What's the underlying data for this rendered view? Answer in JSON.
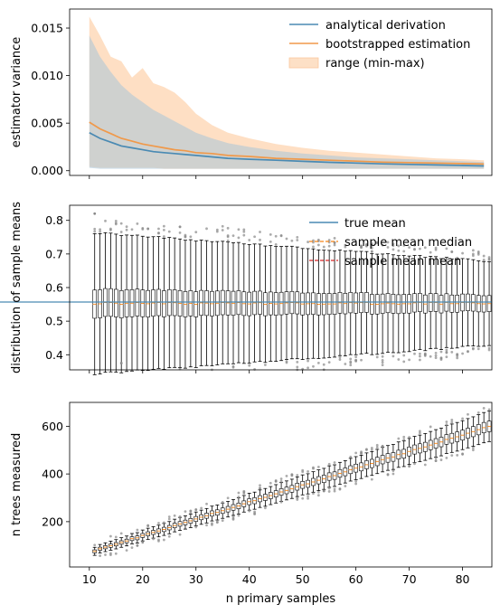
{
  "chart_data": [
    {
      "type": "line",
      "ylabel": "estimator variance",
      "xlim": [
        6.3,
        85.5
      ],
      "ylim": [
        -0.0005,
        0.017
      ],
      "yticks": [
        0.0,
        0.005,
        0.01,
        0.015
      ],
      "ytick_labels": [
        "0.000",
        "0.005",
        "0.010",
        "0.015"
      ],
      "legend": {
        "placement": "top-right",
        "entries": [
          "analytical derivation",
          "bootstrapped estimation",
          "range (min-max)"
        ]
      },
      "x": [
        10,
        12,
        14,
        16,
        18,
        20,
        22,
        24,
        26,
        28,
        30,
        33,
        36,
        40,
        45,
        50,
        55,
        60,
        65,
        70,
        75,
        80,
        84
      ],
      "series": [
        {
          "name": "analytical derivation",
          "color": "#4a8ab3",
          "values": [
            0.004,
            0.0034,
            0.003,
            0.0026,
            0.0024,
            0.0022,
            0.002,
            0.0019,
            0.0018,
            0.0017,
            0.0016,
            0.00145,
            0.0013,
            0.0012,
            0.0011,
            0.00098,
            0.00088,
            0.0008,
            0.00072,
            0.00066,
            0.0006,
            0.00055,
            0.0005
          ]
        },
        {
          "name": "bootstrapped estimation",
          "color": "#f0994a",
          "values": [
            0.0051,
            0.0044,
            0.0039,
            0.0034,
            0.0031,
            0.0028,
            0.0026,
            0.0024,
            0.0022,
            0.0021,
            0.0019,
            0.0018,
            0.0016,
            0.0015,
            0.0013,
            0.0012,
            0.0011,
            0.001,
            0.0009,
            0.00085,
            0.0008,
            0.00075,
            0.0007
          ]
        }
      ],
      "bootstrap_range": {
        "name": "range (min-max)",
        "color": "#fdd4b0",
        "min": [
          0.0004,
          0.0003,
          0.0003,
          0.0003,
          0.0003,
          0.0003,
          0.0003,
          0.0002,
          0.0002,
          0.0002,
          0.0002,
          0.0002,
          0.0002,
          0.0002,
          0.0002,
          0.0002,
          0.0002,
          0.0002,
          0.0002,
          0.0002,
          0.0002,
          0.0002,
          0.0002
        ],
        "max": [
          0.0162,
          0.0142,
          0.012,
          0.0115,
          0.0098,
          0.0108,
          0.0092,
          0.0088,
          0.0082,
          0.0072,
          0.006,
          0.0048,
          0.004,
          0.0034,
          0.0028,
          0.0024,
          0.0021,
          0.0019,
          0.0017,
          0.0015,
          0.0013,
          0.0012,
          0.0011
        ]
      },
      "analytical_range": {
        "color": "#a8c4d9",
        "min": [
          0.0003,
          0.0002,
          0.0002,
          0.0002,
          0.0002,
          0.0002,
          0.0002,
          0.0002,
          0.0002,
          0.0002,
          0.0002,
          0.0002,
          0.0002,
          0.0002,
          0.0002,
          0.0002,
          0.0002,
          0.0002,
          0.0002,
          0.0002,
          0.0002,
          0.0002,
          0.0002
        ],
        "max": [
          0.0142,
          0.012,
          0.0104,
          0.009,
          0.008,
          0.0072,
          0.0064,
          0.0058,
          0.0052,
          0.0046,
          0.004,
          0.0034,
          0.0029,
          0.0025,
          0.0021,
          0.0018,
          0.0016,
          0.0014,
          0.0013,
          0.0012,
          0.0011,
          0.001,
          0.0009
        ]
      }
    },
    {
      "type": "box",
      "ylabel": "distribution of sample means",
      "xlim": [
        6.3,
        85.5
      ],
      "ylim": [
        0.355,
        0.845
      ],
      "yticks": [
        0.4,
        0.5,
        0.6,
        0.7,
        0.8
      ],
      "ytick_labels": [
        "0.4",
        "0.5",
        "0.6",
        "0.7",
        "0.8"
      ],
      "true_mean": 0.557,
      "legend": {
        "placement": "top-right",
        "entries": [
          "true mean",
          "sample mean median",
          "sample mean mean"
        ]
      },
      "box_center": 0.553,
      "n_first": 11,
      "n_last": 85
    },
    {
      "type": "box",
      "ylabel": "n trees measured",
      "xlabel": "n primary samples",
      "xlim": [
        6.3,
        85.5
      ],
      "ylim": [
        10,
        700
      ],
      "yticks": [
        200,
        400,
        600
      ],
      "ytick_labels": [
        "200",
        "400",
        "600"
      ],
      "xticks": [
        10,
        20,
        30,
        40,
        50,
        60,
        70,
        80
      ],
      "xtick_labels": [
        "10",
        "20",
        "30",
        "40",
        "50",
        "60",
        "70",
        "80"
      ],
      "trees_per_sample": 7.05,
      "n_first": 11,
      "n_last": 85
    }
  ]
}
